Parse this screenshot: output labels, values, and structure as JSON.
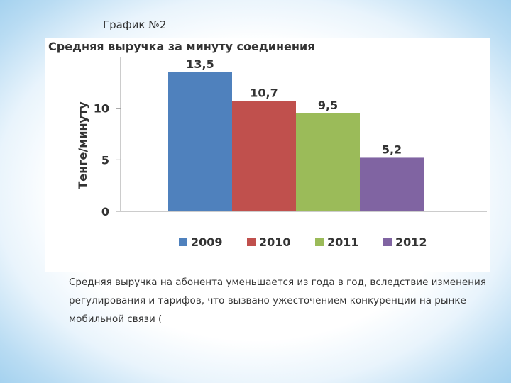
{
  "heading": "График №2",
  "chart_data": {
    "type": "bar",
    "title": "Средняя выручка за минуту соединения",
    "ylabel": "Тенге/минуту",
    "xlabel": "",
    "ylim": [
      0,
      15
    ],
    "yticks": [
      0,
      5,
      10
    ],
    "ytick_labels": [
      "0",
      "5",
      "10"
    ],
    "categories": [
      "2009",
      "2010",
      "2011",
      "2012"
    ],
    "values": [
      13.5,
      10.7,
      9.5,
      5.2
    ],
    "data_labels": [
      "13,5",
      "10,7",
      "9,5",
      "5,2"
    ],
    "colors": [
      "#4f81bd",
      "#c0504d",
      "#9bbb59",
      "#8064a2"
    ],
    "legend_position": "bottom"
  },
  "caption": {
    "lines": [
      "Средняя выручка на абонента уменьшается из года в год, вследствие изменения",
      "регулирования и тарифов, что вызвано ужесточением конкуренции на рынке",
      "мобильной связи ("
    ]
  }
}
